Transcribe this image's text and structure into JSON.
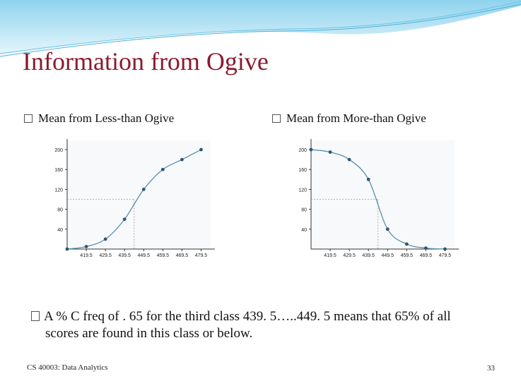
{
  "title": "Information from Ogive",
  "bullets": [
    "Mean from Less-than Ogive",
    "Mean from More-than Ogive"
  ],
  "paragraph": {
    "line1": "A % C freq of . 65 for the third class 439. 5…..449. 5 means that 65% of all",
    "line2": "scores are found in this class or below."
  },
  "footer": {
    "left": "CS 40003: Data Analytics",
    "page_number": "33"
  },
  "colors": {
    "title": "#8b1a2f",
    "curve": "#5a8fa8",
    "point": "#2c5775",
    "reference_line": "#999999"
  },
  "chart_data": [
    {
      "type": "line",
      "title": "",
      "xlabel": "",
      "ylabel": "",
      "x_tick_labels": [
        "419.5",
        "429.5",
        "439.5",
        "449.5",
        "459.5",
        "469.5",
        "479.5"
      ],
      "y_tick_labels": [
        "40",
        "80",
        "120",
        "160",
        "200"
      ],
      "x": [
        409.5,
        419.5,
        429.5,
        439.5,
        449.5,
        459.5,
        469.5,
        479.5
      ],
      "series": [
        {
          "values": [
            0,
            5,
            20,
            60,
            120,
            160,
            180,
            200
          ]
        }
      ],
      "xlim": [
        409.5,
        484.5
      ],
      "ylim": [
        0,
        210
      ],
      "reference_line": {
        "x": 444.5,
        "y": 100
      }
    },
    {
      "type": "line",
      "title": "",
      "xlabel": "",
      "ylabel": "",
      "x_tick_labels": [
        "419.5",
        "429.5",
        "439.5",
        "449.5",
        "459.5",
        "469.5",
        "479.5"
      ],
      "y_tick_labels": [
        "40",
        "80",
        "120",
        "160",
        "200"
      ],
      "x": [
        409.5,
        419.5,
        429.5,
        439.5,
        449.5,
        459.5,
        469.5,
        479.5
      ],
      "series": [
        {
          "values": [
            200,
            195,
            180,
            140,
            40,
            10,
            2,
            0
          ]
        }
      ],
      "xlim": [
        409.5,
        484.5
      ],
      "ylim": [
        0,
        210
      ],
      "reference_line": {
        "x": 444.5,
        "y": 100
      }
    }
  ]
}
